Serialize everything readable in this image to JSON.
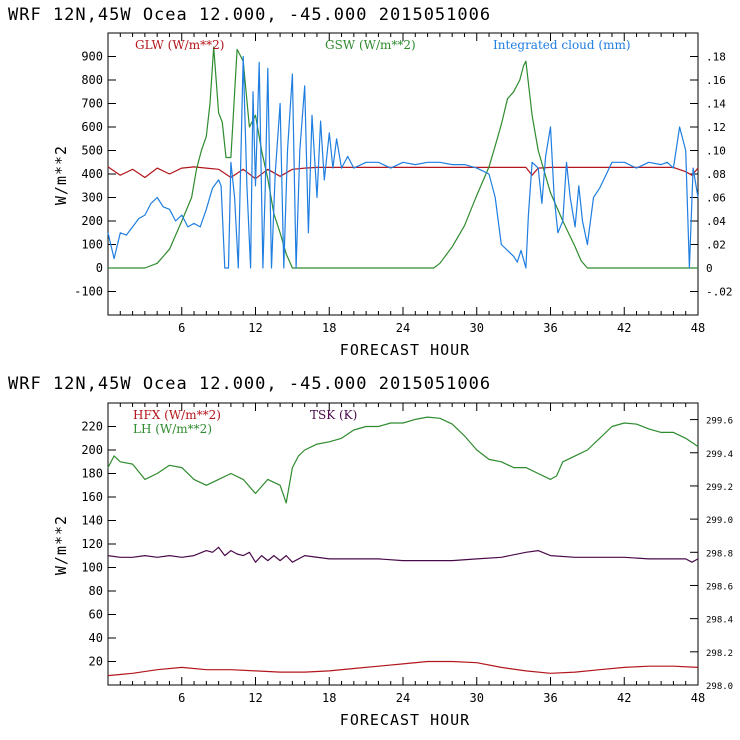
{
  "chart_data": [
    {
      "type": "line",
      "header": "WRF   12N,45W Ocea  12.000, -45.000  2015051006",
      "xlabel": "FORECAST HOUR",
      "ylabel": "W/m**2",
      "xlim": [
        0,
        48
      ],
      "ylim": [
        -200,
        1000
      ],
      "y2lim": [
        -0.04,
        0.2
      ],
      "xticks": [
        "6",
        "12",
        "18",
        "24",
        "30",
        "36",
        "42",
        "48"
      ],
      "yticks": [
        "900",
        "800",
        "700",
        "600",
        "500",
        "400",
        "300",
        "200",
        "100",
        "0",
        "-100"
      ],
      "y2ticks": [
        ".18",
        ".16",
        ".14",
        ".12",
        ".10",
        ".08",
        ".06",
        ".04",
        ".02",
        "0",
        "-.02"
      ],
      "legend": [
        {
          "label": "GLW (W/m**2)",
          "color": "#b3161c"
        },
        {
          "label": "GSW (W/m**2)",
          "color": "#2e8b2e"
        },
        {
          "label": "Integrated cloud (mm)",
          "color": "#1f7ee0"
        }
      ],
      "series": [
        {
          "name": "GLW (W/m**2)",
          "axis": "left",
          "color": "#b3161c",
          "x": [
            0,
            1,
            2,
            3,
            4,
            5,
            6,
            7,
            8,
            9,
            10,
            11,
            12,
            13,
            14,
            15,
            16,
            17,
            18,
            20,
            22,
            24,
            26,
            28,
            30,
            32,
            34,
            34.5,
            35,
            36,
            38,
            40,
            42,
            44,
            46,
            47,
            47.5,
            48
          ],
          "y": [
            430,
            395,
            420,
            385,
            425,
            400,
            425,
            430,
            425,
            420,
            385,
            420,
            380,
            420,
            390,
            420,
            425,
            428,
            428,
            428,
            428,
            428,
            428,
            428,
            428,
            428,
            428,
            395,
            425,
            428,
            428,
            428,
            428,
            428,
            428,
            410,
            395,
            425
          ]
        },
        {
          "name": "GSW (W/m**2)",
          "axis": "left",
          "color": "#2e8b2e",
          "x": [
            0,
            1,
            2,
            3,
            4,
            5,
            6,
            6.8,
            7.2,
            7.6,
            8,
            8.3,
            8.6,
            9,
            9.3,
            9.6,
            10,
            10.5,
            11,
            11.5,
            12,
            12.5,
            13,
            13.5,
            14,
            14.5,
            15,
            16,
            18,
            20,
            22,
            24,
            26,
            26.5,
            27,
            28,
            29,
            30,
            30.5,
            31,
            31.5,
            32,
            32.5,
            33,
            33.5,
            33.8,
            34,
            34.5,
            35,
            36,
            37,
            38,
            38.5,
            39,
            40,
            42,
            44,
            46,
            48
          ],
          "y": [
            0,
            0,
            0,
            0,
            20,
            80,
            200,
            300,
            420,
            500,
            560,
            700,
            940,
            660,
            620,
            470,
            470,
            930,
            880,
            600,
            650,
            500,
            380,
            230,
            150,
            60,
            0,
            0,
            0,
            0,
            0,
            0,
            0,
            0,
            20,
            90,
            180,
            310,
            370,
            430,
            520,
            610,
            720,
            750,
            800,
            860,
            880,
            650,
            500,
            320,
            200,
            90,
            30,
            0,
            0,
            0,
            0,
            0,
            0
          ]
        },
        {
          "name": "Integrated cloud (mm)",
          "axis": "right",
          "color": "#1f7ee0",
          "x": [
            0,
            0.5,
            1,
            1.5,
            2,
            2.5,
            3,
            3.5,
            4,
            4.5,
            5,
            5.5,
            6,
            6.5,
            7,
            7.5,
            8,
            8.5,
            9,
            9.2,
            9.5,
            9.8,
            10,
            10.3,
            10.6,
            11,
            11.3,
            11.6,
            11.8,
            12,
            12.3,
            12.6,
            12.8,
            13,
            13.3,
            13.6,
            14,
            14.3,
            14.6,
            15,
            15.3,
            15.6,
            16,
            16.3,
            16.6,
            17,
            17.3,
            17.6,
            18,
            18.3,
            18.6,
            19,
            19.5,
            20,
            21,
            22,
            23,
            24,
            25,
            26,
            27,
            28,
            29,
            30,
            31,
            31.5,
            32,
            32.5,
            33,
            33.3,
            33.6,
            34,
            34.2,
            34.5,
            35,
            35.3,
            35.6,
            36,
            36.3,
            36.6,
            37,
            37.3,
            37.6,
            38,
            38.3,
            38.6,
            39,
            39.5,
            40,
            41,
            42,
            43,
            44,
            45,
            45.5,
            46,
            46.5,
            47,
            47.3,
            47.6,
            48
          ],
          "y": [
            0.03,
            0.008,
            0.03,
            0.028,
            0.035,
            0.042,
            0.045,
            0.055,
            0.06,
            0.052,
            0.05,
            0.04,
            0.045,
            0.035,
            0.038,
            0.035,
            0.05,
            0.068,
            0.075,
            0.07,
            0,
            0,
            0.09,
            0.06,
            0,
            0.18,
            0.07,
            0,
            0.15,
            0.07,
            0.175,
            0,
            0.07,
            0.17,
            0,
            0.08,
            0.14,
            0,
            0.1,
            0.165,
            0,
            0.1,
            0.155,
            0.03,
            0.13,
            0.06,
            0.125,
            0.075,
            0.115,
            0.085,
            0.11,
            0.085,
            0.095,
            0.085,
            0.09,
            0.09,
            0.085,
            0.09,
            0.088,
            0.09,
            0.09,
            0.088,
            0.088,
            0.085,
            0.08,
            0.06,
            0.02,
            0.015,
            0.01,
            0.005,
            0.015,
            0,
            0.045,
            0.09,
            0.085,
            0.055,
            0.095,
            0.12,
            0.06,
            0.03,
            0.04,
            0.09,
            0.06,
            0.035,
            0.07,
            0.04,
            0.02,
            0.06,
            0.068,
            0.09,
            0.09,
            0.085,
            0.09,
            0.088,
            0.09,
            0.085,
            0.12,
            0.1,
            0,
            0.085,
            0.06
          ]
        }
      ]
    },
    {
      "type": "line",
      "header": "WRF   12N,45W Ocea  12.000, -45.000  2015051006",
      "xlabel": "FORECAST HOUR",
      "ylabel": "W/m**2",
      "xlim": [
        0,
        48
      ],
      "ylim": [
        0,
        240
      ],
      "y2lim": [
        298.0,
        299.7
      ],
      "xticks": [
        "6",
        "12",
        "18",
        "24",
        "30",
        "36",
        "42",
        "48"
      ],
      "yticks": [
        "220",
        "200",
        "180",
        "160",
        "140",
        "120",
        "100",
        "80",
        "60",
        "40",
        "20"
      ],
      "y2ticks": [
        "299.6",
        "299.4",
        "299.2",
        "299.0",
        "298.8",
        "298.6",
        "298.4",
        "298.2",
        "298.0"
      ],
      "legend": [
        {
          "label": "HFX (W/m**2)",
          "color": "#b3161c"
        },
        {
          "label": "LH  (W/m**2)",
          "color": "#2e8b2e"
        },
        {
          "label": "TSK (K)",
          "color": "#4a0a4a"
        }
      ],
      "series": [
        {
          "name": "HFX (W/m**2)",
          "axis": "left",
          "color": "#b3161c",
          "x": [
            0,
            2,
            4,
            6,
            8,
            10,
            12,
            14,
            16,
            18,
            20,
            22,
            24,
            26,
            28,
            30,
            32,
            34,
            36,
            38,
            40,
            42,
            44,
            46,
            48
          ],
          "y": [
            8,
            10,
            13,
            15,
            13,
            13,
            12,
            11,
            11,
            12,
            14,
            16,
            18,
            20,
            20,
            19,
            15,
            12,
            10,
            11,
            13,
            15,
            16,
            16,
            15
          ]
        },
        {
          "name": "LH  (W/m**2)",
          "axis": "left",
          "color": "#2e8b2e",
          "x": [
            0,
            0.5,
            1,
            2,
            3,
            4,
            5,
            6,
            7,
            8,
            9,
            10,
            11,
            12,
            13,
            14,
            14.5,
            15,
            15.5,
            16,
            17,
            18,
            19,
            20,
            21,
            22,
            23,
            24,
            25,
            26,
            27,
            28,
            29,
            30,
            31,
            32,
            33,
            34,
            35,
            36,
            36.5,
            37,
            38,
            39,
            40,
            41,
            42,
            43,
            44,
            45,
            46,
            47,
            48
          ],
          "y": [
            185,
            195,
            190,
            188,
            175,
            180,
            187,
            185,
            175,
            170,
            175,
            180,
            175,
            163,
            175,
            170,
            155,
            185,
            195,
            200,
            205,
            207,
            210,
            217,
            220,
            220,
            223,
            223,
            226,
            228,
            227,
            222,
            212,
            200,
            192,
            190,
            185,
            185,
            180,
            175,
            178,
            190,
            195,
            200,
            210,
            220,
            223,
            222,
            218,
            215,
            215,
            210,
            203
          ]
        },
        {
          "name": "TSK (K)",
          "axis": "right",
          "color": "#4a0a4a",
          "x": [
            0,
            1,
            2,
            3,
            4,
            5,
            6,
            7,
            8,
            8.5,
            9,
            9.5,
            10,
            10.5,
            11,
            11.5,
            12,
            12.5,
            13,
            13.5,
            14,
            14.5,
            15,
            16,
            18,
            20,
            22,
            24,
            26,
            28,
            30,
            32,
            34,
            35,
            36,
            38,
            40,
            42,
            44,
            46,
            47,
            47.5,
            48
          ],
          "y": [
            298.78,
            298.77,
            298.77,
            298.78,
            298.77,
            298.78,
            298.77,
            298.78,
            298.81,
            298.8,
            298.83,
            298.78,
            298.81,
            298.79,
            298.78,
            298.8,
            298.74,
            298.78,
            298.75,
            298.78,
            298.75,
            298.78,
            298.74,
            298.78,
            298.76,
            298.76,
            298.76,
            298.75,
            298.75,
            298.75,
            298.76,
            298.77,
            298.8,
            298.81,
            298.78,
            298.77,
            298.77,
            298.77,
            298.76,
            298.76,
            298.76,
            298.74,
            298.76
          ]
        }
      ]
    }
  ]
}
